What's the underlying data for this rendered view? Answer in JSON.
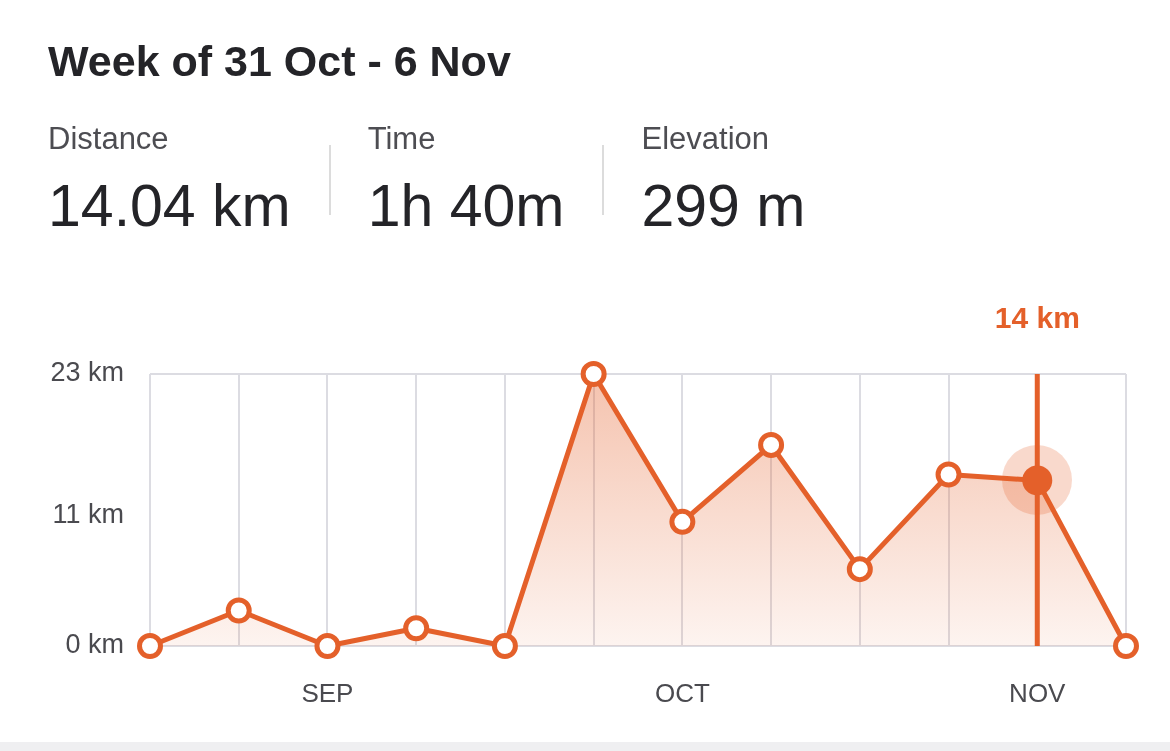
{
  "chart_data": {
    "type": "area",
    "title": "Week of 31 Oct - 6 Nov",
    "annotations": [
      "Distance",
      "14.04 km",
      "Time",
      "1h 40m",
      "Elevation",
      "299 m"
    ],
    "categories": [
      null,
      null,
      "SEP",
      null,
      null,
      null,
      "OCT",
      null,
      null,
      null,
      "NOV",
      null
    ],
    "values": [
      0,
      3,
      0,
      1.5,
      0,
      23,
      10.5,
      17,
      6.5,
      14.5,
      14,
      0
    ],
    "color": "#e4602a",
    "ylim": [
      0,
      23
    ],
    "yticks": [
      {
        "value": 0,
        "label": "0 km"
      },
      {
        "value": 11,
        "label": "11 km"
      },
      {
        "value": 23,
        "label": "23 km"
      }
    ],
    "grid": "x",
    "marker": "circle",
    "ref_lines": [
      {
        "axis": "x",
        "value": "NOV",
        "label": "14 km",
        "color": "#e4602a"
      }
    ]
  }
}
